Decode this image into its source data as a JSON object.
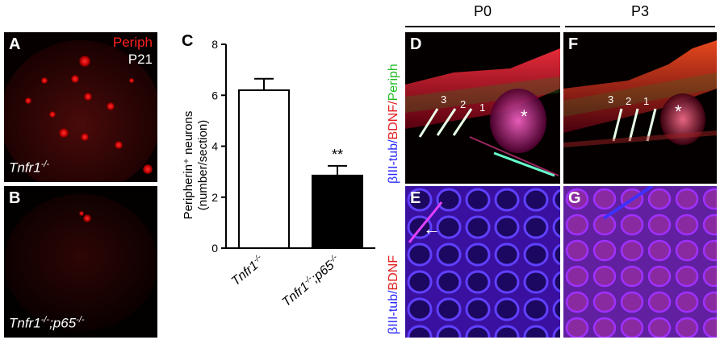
{
  "panels": {
    "A": {
      "letter": "A",
      "stain": "Periph",
      "age": "P21",
      "genotype": "Tnfr1",
      "genotype_sup": "-/-"
    },
    "B": {
      "letter": "B",
      "genotype_1": "Tnfr1",
      "sup_1": "-/-",
      "genotype_2": ";p65",
      "sup_2": "-/-"
    },
    "C": {
      "letter": "C"
    },
    "D": {
      "letter": "D",
      "nums": [
        "3",
        "2",
        "1"
      ],
      "star": "*"
    },
    "E": {
      "letter": "E",
      "arrow": "←"
    },
    "F": {
      "letter": "F",
      "nums": [
        "3",
        "2",
        "1"
      ],
      "star": "*"
    },
    "G": {
      "letter": "G"
    }
  },
  "column_headers": {
    "p0": "P0",
    "p3": "P3"
  },
  "side_labels": {
    "top": [
      {
        "text": "βIII-tub",
        "color": "#2a2aff"
      },
      {
        "text": "/",
        "color": "#2a2aff"
      },
      {
        "text": "BDNF",
        "color": "#e02020"
      },
      {
        "text": "/",
        "color": "#e02020"
      },
      {
        "text": "Periph",
        "color": "#22bb22"
      }
    ],
    "bottom": [
      {
        "text": "βIII-tub",
        "color": "#2a2aff"
      },
      {
        "text": "/",
        "color": "#2a2aff"
      },
      {
        "text": "BDNF",
        "color": "#e02020"
      }
    ]
  },
  "chart_data": {
    "type": "bar",
    "categories": [
      "Tnfr1-/-",
      "Tnfr1-/-;p65-/-"
    ],
    "values": [
      6.2,
      2.85
    ],
    "errors": [
      0.45,
      0.38
    ],
    "fills": [
      "#ffffff",
      "#000000"
    ],
    "ylabel_line1": "Peripherin⁺ neurons",
    "ylabel_line2": "(number/section)",
    "ylim": [
      0,
      8
    ],
    "yticks": [
      "0",
      "2",
      "4",
      "6",
      "8"
    ],
    "significance": "**",
    "xtick_1": {
      "base": "Tnfr1",
      "sup": "-/-"
    },
    "xtick_2": {
      "base": "Tnfr1",
      "sup": "-/-",
      "base2": ";p65",
      "sup2": "-/-"
    }
  }
}
